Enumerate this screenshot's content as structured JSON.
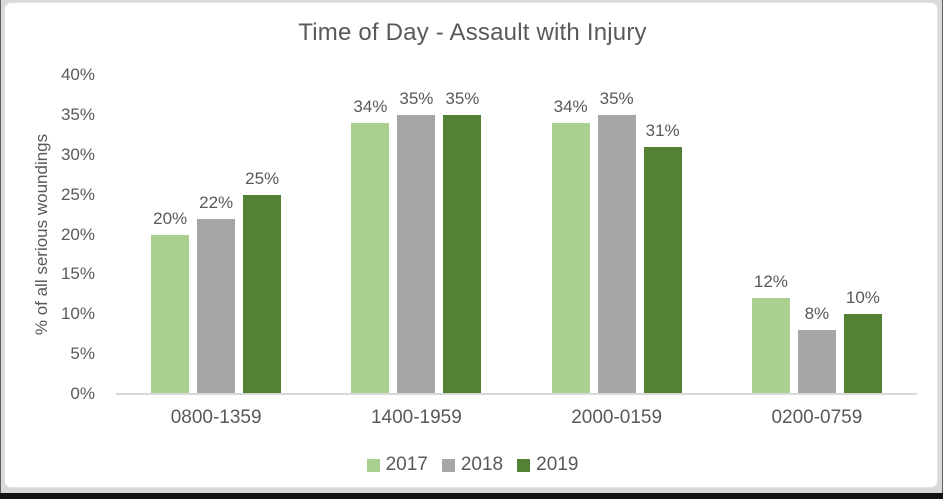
{
  "chart_data": {
    "type": "bar",
    "title": "Time of Day - Assault with Injury",
    "ylabel": "% of all serious woundings",
    "xlabel": "",
    "categories": [
      "0800-1359",
      "1400-1959",
      "2000-0159",
      "0200-0759"
    ],
    "series": [
      {
        "name": "2017",
        "color": "#A9D08E",
        "values": [
          20,
          34,
          34,
          12
        ]
      },
      {
        "name": "2018",
        "color": "#A6A6A6",
        "values": [
          22,
          35,
          35,
          8
        ]
      },
      {
        "name": "2019",
        "color": "#548235",
        "values": [
          25,
          35,
          31,
          10
        ]
      }
    ],
    "data_labels": [
      "20%",
      "22%",
      "25%",
      "34%",
      "35%",
      "35%",
      "34%",
      "35%",
      "31%",
      "12%",
      "8%",
      "10%"
    ],
    "data_label_suffix": "%",
    "y_ticks": [
      "0%",
      "5%",
      "10%",
      "15%",
      "20%",
      "25%",
      "30%",
      "35%",
      "40%"
    ],
    "ylim": [
      0,
      40
    ],
    "grid": false,
    "legend_position": "bottom",
    "colors": {
      "text": "#595959",
      "axis_line": "#d9d9d9",
      "panel_background": "#ffffff",
      "outer_background": "#d9d9d9",
      "bottom_bar": "#121212"
    }
  }
}
